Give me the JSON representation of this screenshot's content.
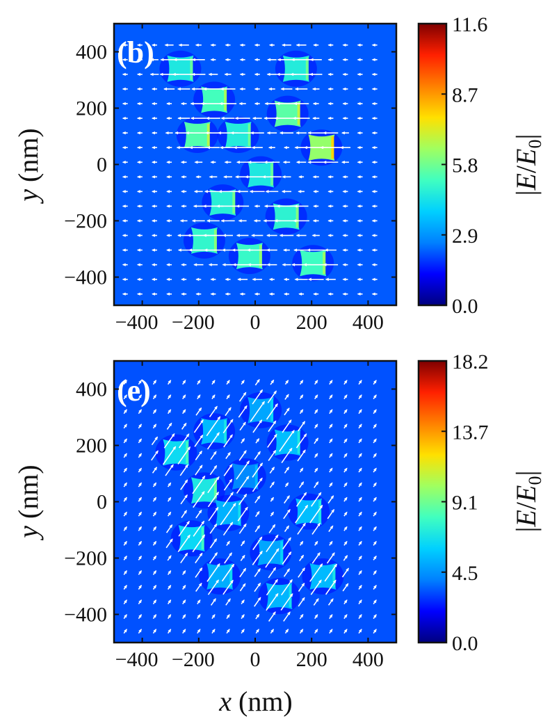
{
  "colors": {
    "background_field": "#2f5fc4",
    "arrow": "#ffffff",
    "frame": "#111111",
    "colormap": [
      "#00007f",
      "#0000ff",
      "#0080ff",
      "#00d0ff",
      "#40ffc0",
      "#a0ff60",
      "#ffe000",
      "#ff8000",
      "#ff2000",
      "#7f0000"
    ]
  },
  "chart_data": [
    {
      "type": "heatmap",
      "panel_label": "(b)",
      "xlabel": "",
      "ylabel": "y (nm)",
      "xlim": [
        -500,
        500
      ],
      "ylim": [
        -500,
        500
      ],
      "xticks": [
        -400,
        -200,
        0,
        200,
        400
      ],
      "yticks": [
        -400,
        -200,
        0,
        200,
        400
      ],
      "xtick_labels": [
        "−400",
        "−200",
        "0",
        "200",
        "400"
      ],
      "ytick_labels": [
        "−400",
        "−200",
        "0",
        "200",
        "400"
      ],
      "colorbar": {
        "label": "|E/E0|",
        "range": [
          0.0,
          11.6
        ],
        "ticks": [
          "0.0",
          "2.9",
          "5.8",
          "8.7",
          "11.6"
        ]
      },
      "background_field_level": 2.2,
      "field_arrow_direction_deg": 180,
      "nanostructures": [
        {
          "x": -265,
          "y": 340,
          "level": 4.5
        },
        {
          "x": 145,
          "y": 340,
          "level": 4.6
        },
        {
          "x": -145,
          "y": 230,
          "level": 5.2
        },
        {
          "x": 115,
          "y": 180,
          "level": 5.5
        },
        {
          "x": -205,
          "y": 105,
          "level": 5.4
        },
        {
          "x": -60,
          "y": 105,
          "level": 4.6
        },
        {
          "x": 235,
          "y": 60,
          "level": 6.3
        },
        {
          "x": 20,
          "y": -35,
          "level": 4.5
        },
        {
          "x": -115,
          "y": -135,
          "level": 4.7
        },
        {
          "x": 110,
          "y": -185,
          "level": 4.8
        },
        {
          "x": -180,
          "y": -270,
          "level": 4.9
        },
        {
          "x": -20,
          "y": -325,
          "level": 5.0
        },
        {
          "x": 205,
          "y": -350,
          "level": 5.1
        }
      ]
    },
    {
      "type": "heatmap",
      "panel_label": "(e)",
      "xlabel": "x (nm)",
      "ylabel": "y (nm)",
      "xlim": [
        -500,
        500
      ],
      "ylim": [
        -500,
        500
      ],
      "xticks": [
        -400,
        -200,
        0,
        200,
        400
      ],
      "yticks": [
        -400,
        -200,
        0,
        200,
        400
      ],
      "xtick_labels": [
        "−400",
        "−200",
        "0",
        "200",
        "400"
      ],
      "ytick_labels": [
        "−400",
        "−200",
        "0",
        "200",
        "400"
      ],
      "colorbar": {
        "label": "|E/E0|",
        "range": [
          0.0,
          18.2
        ],
        "ticks": [
          "0.0",
          "4.5",
          "9.1",
          "13.7",
          "18.2"
        ]
      },
      "background_field_level": 3.3,
      "field_arrow_direction_deg": 55,
      "nanostructures": [
        {
          "x": 20,
          "y": 325,
          "level": 5.0
        },
        {
          "x": -145,
          "y": 250,
          "level": 5.5
        },
        {
          "x": 115,
          "y": 210,
          "level": 5.6
        },
        {
          "x": -280,
          "y": 175,
          "level": 6.5
        },
        {
          "x": -35,
          "y": 90,
          "level": 4.3
        },
        {
          "x": -180,
          "y": 40,
          "level": 7.0
        },
        {
          "x": -95,
          "y": -40,
          "level": 5.3
        },
        {
          "x": 190,
          "y": -35,
          "level": 5.6
        },
        {
          "x": -225,
          "y": -130,
          "level": 6.4
        },
        {
          "x": 55,
          "y": -180,
          "level": 5.0
        },
        {
          "x": -125,
          "y": -265,
          "level": 5.2
        },
        {
          "x": 240,
          "y": -265,
          "level": 5.5
        },
        {
          "x": 85,
          "y": -335,
          "level": 5.4
        }
      ]
    }
  ]
}
